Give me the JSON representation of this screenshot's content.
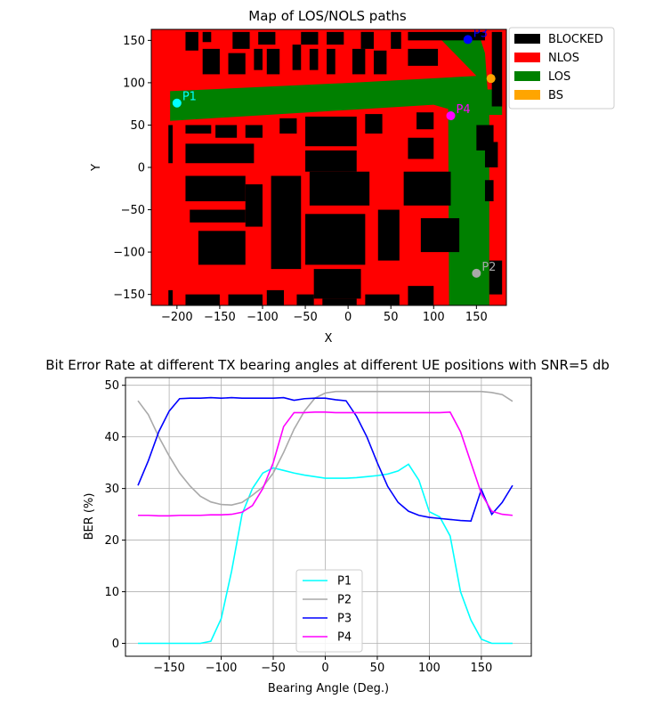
{
  "chart_data": [
    {
      "type": "heatmap",
      "title": "Map of LOS/NOLS paths",
      "xlabel": "X",
      "ylabel": "Y",
      "xlim": [
        -230,
        185
      ],
      "ylim": [
        -163,
        163
      ],
      "xticks": [
        -200,
        -150,
        -100,
        -50,
        0,
        50,
        100,
        150
      ],
      "yticks": [
        -150,
        -100,
        -50,
        0,
        50,
        100,
        150
      ],
      "legend": {
        "position": "outside-right",
        "entries": [
          {
            "label": "BLOCKED",
            "color": "#000000"
          },
          {
            "label": "NLOS",
            "color": "#ff0000"
          },
          {
            "label": "LOS",
            "color": "#008000"
          },
          {
            "label": "BS",
            "color": "#ffa500"
          }
        ]
      },
      "points": [
        {
          "label": "P1",
          "x": -200,
          "y": 76,
          "color": "#00ffff"
        },
        {
          "label": "P2",
          "x": 150,
          "y": -125,
          "color": "#a9a9a9"
        },
        {
          "label": "P3",
          "x": 140,
          "y": 151,
          "color": "#0000ff"
        },
        {
          "label": "P4",
          "x": 120,
          "y": 61,
          "color": "#ff00ff"
        },
        {
          "label": "",
          "x": 167,
          "y": 105,
          "color": "#ffa500"
        }
      ],
      "los_region": [
        [
          -208,
          90
        ],
        [
          -208,
          55
        ],
        [
          100,
          74
        ],
        [
          117,
          69
        ],
        [
          118,
          -163
        ],
        [
          165,
          -163
        ],
        [
          165,
          62
        ],
        [
          180,
          62
        ],
        [
          180,
          92
        ],
        [
          163,
          92
        ],
        [
          160,
          135
        ],
        [
          152,
          160
        ],
        [
          100,
          160
        ],
        [
          150,
          108
        ],
        [
          5,
          100
        ]
      ],
      "blocked": [
        [
          -190,
          160,
          -175,
          138
        ],
        [
          -170,
          160,
          -160,
          148
        ],
        [
          -135,
          160,
          -115,
          140
        ],
        [
          -105,
          160,
          -85,
          145
        ],
        [
          -55,
          160,
          -35,
          145
        ],
        [
          -25,
          160,
          -5,
          145
        ],
        [
          15,
          160,
          30,
          140
        ],
        [
          50,
          160,
          62,
          140
        ],
        [
          70,
          160,
          160,
          150
        ],
        [
          -170,
          140,
          -150,
          110
        ],
        [
          -140,
          135,
          -120,
          110
        ],
        [
          -110,
          140,
          -100,
          115
        ],
        [
          -95,
          140,
          -80,
          110
        ],
        [
          -65,
          145,
          -55,
          115
        ],
        [
          -45,
          140,
          -35,
          115
        ],
        [
          -25,
          140,
          -15,
          110
        ],
        [
          5,
          140,
          20,
          110
        ],
        [
          30,
          138,
          45,
          110
        ],
        [
          70,
          140,
          105,
          120
        ],
        [
          168,
          160,
          180,
          72
        ],
        [
          -210,
          50,
          -205,
          5
        ],
        [
          -190,
          50,
          -160,
          40
        ],
        [
          -155,
          50,
          -130,
          35
        ],
        [
          -120,
          50,
          -100,
          35
        ],
        [
          -80,
          58,
          -60,
          40
        ],
        [
          -50,
          60,
          10,
          25
        ],
        [
          20,
          63,
          40,
          40
        ],
        [
          80,
          65,
          100,
          45
        ],
        [
          150,
          50,
          170,
          20
        ],
        [
          -190,
          28,
          -110,
          5
        ],
        [
          -50,
          20,
          10,
          -5
        ],
        [
          70,
          35,
          100,
          10
        ],
        [
          160,
          30,
          175,
          0
        ],
        [
          -190,
          -10,
          -120,
          -40
        ],
        [
          -120,
          -20,
          -100,
          -70
        ],
        [
          -90,
          -10,
          -55,
          -120
        ],
        [
          -45,
          -5,
          25,
          -45
        ],
        [
          65,
          -5,
          120,
          -45
        ],
        [
          160,
          -15,
          170,
          -40
        ],
        [
          -185,
          -50,
          -120,
          -65
        ],
        [
          -50,
          -55,
          20,
          -115
        ],
        [
          35,
          -50,
          60,
          -110
        ],
        [
          85,
          -60,
          130,
          -100
        ],
        [
          -175,
          -75,
          -120,
          -115
        ],
        [
          -40,
          -120,
          15,
          -155
        ],
        [
          -210,
          -145,
          -205,
          -163
        ],
        [
          -190,
          -150,
          -150,
          -163
        ],
        [
          -140,
          -150,
          -100,
          -163
        ],
        [
          -95,
          -145,
          -75,
          -163
        ],
        [
          -60,
          -150,
          -40,
          -163
        ],
        [
          -30,
          -155,
          10,
          -163
        ],
        [
          20,
          -150,
          60,
          -163
        ],
        [
          70,
          -140,
          100,
          -163
        ],
        [
          165,
          -110,
          180,
          -150
        ]
      ]
    },
    {
      "type": "line",
      "title": "Bit Error Rate at different TX bearing angles at different UE positions with SNR=5 db",
      "xlabel": "Bearing Angle (Deg.)",
      "ylabel": "BER (%)",
      "xlim": [
        -192,
        198
      ],
      "ylim": [
        -2.5,
        51.5
      ],
      "xticks": [
        -150,
        -100,
        -50,
        0,
        50,
        100,
        150
      ],
      "yticks": [
        0,
        10,
        20,
        30,
        40,
        50
      ],
      "grid": true,
      "legend": {
        "position": "lower-center"
      },
      "x": [
        -180,
        -170,
        -160,
        -150,
        -140,
        -130,
        -120,
        -110,
        -100,
        -90,
        -80,
        -70,
        -60,
        -50,
        -40,
        -30,
        -20,
        -10,
        0,
        10,
        20,
        30,
        40,
        50,
        60,
        70,
        80,
        90,
        100,
        110,
        120,
        130,
        140,
        150,
        160,
        170,
        180
      ],
      "series": [
        {
          "name": "P1",
          "color": "#00ffff",
          "values": [
            0,
            0,
            0,
            0,
            0,
            0,
            0,
            0.4,
            4.8,
            14,
            25,
            30,
            33,
            34,
            33.5,
            33,
            32.6,
            32.3,
            32,
            32,
            32,
            32.1,
            32.3,
            32.5,
            32.8,
            33.4,
            34.7,
            31.6,
            25.5,
            24.5,
            20.8,
            10,
            4.5,
            0.8,
            0,
            0,
            0
          ]
        },
        {
          "name": "P2",
          "color": "#a9a9a9",
          "values": [
            47,
            44.3,
            40,
            36.3,
            33,
            30.5,
            28.5,
            27.4,
            26.9,
            26.8,
            27.3,
            28.7,
            30.3,
            33,
            37,
            41.5,
            45,
            47.5,
            48.5,
            48.8,
            48.8,
            48.8,
            48.8,
            48.8,
            48.8,
            48.8,
            48.8,
            48.8,
            48.8,
            48.8,
            48.8,
            48.8,
            48.8,
            48.8,
            48.6,
            48.2,
            46.9
          ]
        },
        {
          "name": "P3",
          "color": "#0000ff",
          "values": [
            30.6,
            35.4,
            41,
            45,
            47.4,
            47.5,
            47.5,
            47.6,
            47.5,
            47.6,
            47.5,
            47.5,
            47.5,
            47.5,
            47.6,
            47.1,
            47.4,
            47.5,
            47.5,
            47.2,
            47,
            44,
            40,
            35,
            30.4,
            27.3,
            25.6,
            24.8,
            24.4,
            24.2,
            24,
            23.8,
            23.7,
            29.8,
            25,
            27.3,
            30.6
          ]
        },
        {
          "name": "P4",
          "color": "#ff00ff",
          "values": [
            24.8,
            24.8,
            24.7,
            24.7,
            24.8,
            24.8,
            24.8,
            24.9,
            24.9,
            25,
            25.4,
            26.7,
            30,
            35,
            42,
            44.7,
            44.7,
            44.8,
            44.8,
            44.7,
            44.7,
            44.7,
            44.7,
            44.7,
            44.7,
            44.7,
            44.7,
            44.7,
            44.7,
            44.7,
            44.8,
            41,
            35,
            29,
            25.6,
            25,
            24.8
          ]
        }
      ]
    }
  ]
}
